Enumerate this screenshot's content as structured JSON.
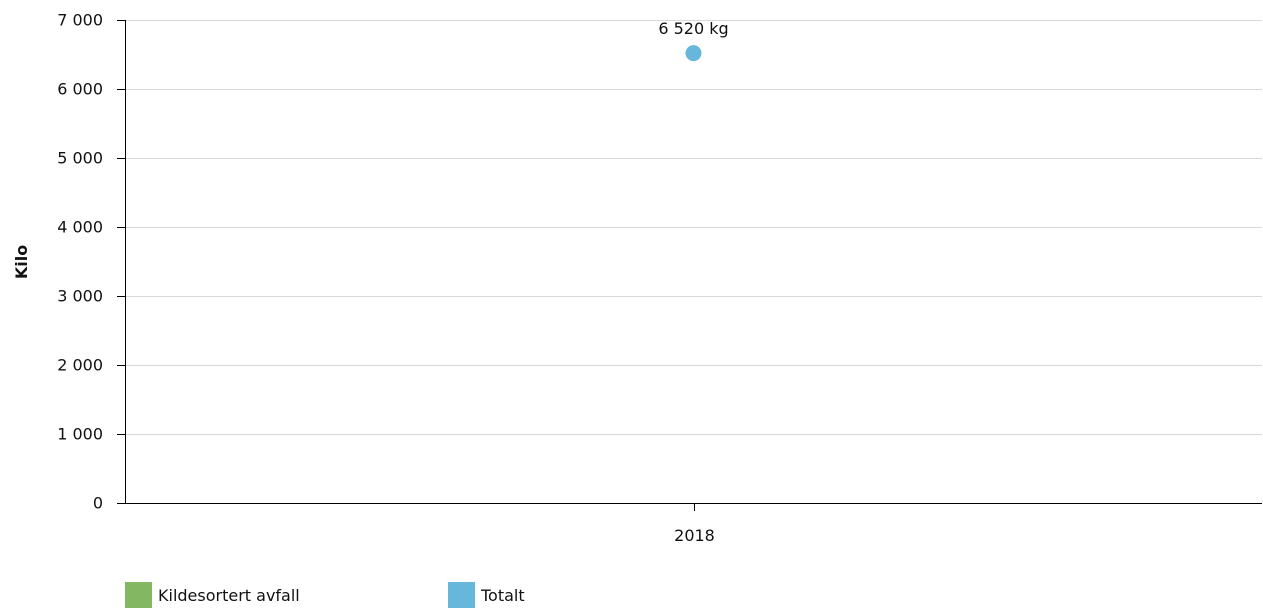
{
  "chart_data": {
    "type": "scatter",
    "ylabel": "Kilo",
    "ylim": [
      0,
      7000
    ],
    "y_ticks": [
      0,
      1000,
      2000,
      3000,
      4000,
      5000,
      6000,
      7000
    ],
    "y_tick_labels": [
      "0",
      "1 000",
      "2 000",
      "3 000",
      "4 000",
      "5 000",
      "6 000",
      "7 000"
    ],
    "categories": [
      "2018"
    ],
    "grid": true,
    "series": [
      {
        "name": "Kildesortert avfall",
        "color": "#84b761",
        "values": [
          null
        ]
      },
      {
        "name": "Totalt",
        "color": "#67b7dc",
        "values": [
          6520
        ],
        "data_labels": [
          "6 520 kg"
        ]
      }
    ],
    "legend_placement": "bottom-left"
  }
}
